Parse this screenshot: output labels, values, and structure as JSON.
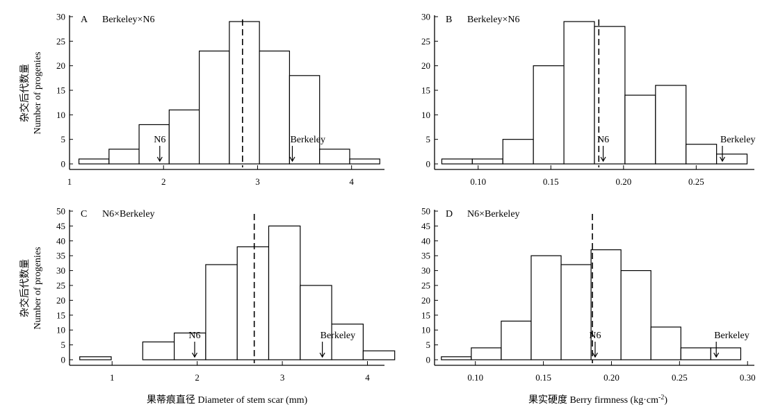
{
  "chart_data": [
    {
      "type": "bar",
      "panel_letter": "A",
      "cross": "Berkeley×N6",
      "ylabel_cn": "杂交后代数量",
      "ylabel_en": "Number of progenies",
      "xlabel": "",
      "xlim": [
        1.0,
        4.35
      ],
      "ylim": [
        0,
        30
      ],
      "xticks": [
        1,
        2,
        3,
        4
      ],
      "yticks": [
        0,
        5,
        10,
        15,
        20,
        25,
        30
      ],
      "bins": [
        {
          "x0": 1.1,
          "x1": 1.42,
          "count": 1
        },
        {
          "x0": 1.42,
          "x1": 1.74,
          "count": 3
        },
        {
          "x0": 1.74,
          "x1": 2.06,
          "count": 8
        },
        {
          "x0": 2.06,
          "x1": 2.38,
          "count": 11
        },
        {
          "x0": 2.38,
          "x1": 2.7,
          "count": 23
        },
        {
          "x0": 2.7,
          "x1": 3.02,
          "count": 29
        },
        {
          "x0": 3.02,
          "x1": 3.34,
          "count": 23
        },
        {
          "x0": 3.34,
          "x1": 3.66,
          "count": 18
        },
        {
          "x0": 3.66,
          "x1": 3.98,
          "count": 3
        },
        {
          "x0": 3.98,
          "x1": 4.3,
          "count": 1
        }
      ],
      "mean": 2.84,
      "markers": [
        {
          "label": "N6",
          "x": 1.96
        },
        {
          "label": "Berkeley",
          "x": 3.37
        }
      ]
    },
    {
      "type": "bar",
      "panel_letter": "B",
      "cross": "Berkeley×N6",
      "ylabel_cn": "",
      "ylabel_en": "",
      "xlabel": "",
      "xlim": [
        0.07,
        0.29
      ],
      "ylim": [
        0,
        30
      ],
      "xticks": [
        0.1,
        0.15,
        0.2,
        0.25
      ],
      "yticks": [
        0,
        5,
        10,
        15,
        20,
        25,
        30
      ],
      "bins": [
        {
          "x0": 0.075,
          "x1": 0.096,
          "count": 1
        },
        {
          "x0": 0.096,
          "x1": 0.117,
          "count": 1
        },
        {
          "x0": 0.117,
          "x1": 0.138,
          "count": 5
        },
        {
          "x0": 0.138,
          "x1": 0.159,
          "count": 20
        },
        {
          "x0": 0.159,
          "x1": 0.18,
          "count": 29
        },
        {
          "x0": 0.18,
          "x1": 0.201,
          "count": 28
        },
        {
          "x0": 0.201,
          "x1": 0.222,
          "count": 14
        },
        {
          "x0": 0.222,
          "x1": 0.243,
          "count": 16
        },
        {
          "x0": 0.243,
          "x1": 0.264,
          "count": 4
        },
        {
          "x0": 0.264,
          "x1": 0.285,
          "count": 2
        }
      ],
      "mean": 0.183,
      "markers": [
        {
          "label": "N6",
          "x": 0.186
        },
        {
          "label": "Berkeley",
          "x": 0.268
        }
      ]
    },
    {
      "type": "bar",
      "panel_letter": "C",
      "cross": "N6×Berkeley",
      "ylabel_cn": "杂交后代数量",
      "ylabel_en": "Number of progenies",
      "xlabel": "果蒂痕直径 Diameter of stem scar (mm)",
      "xlim": [
        0.5,
        4.2
      ],
      "ylim": [
        0,
        50
      ],
      "xticks": [
        1,
        2,
        3,
        4
      ],
      "yticks": [
        0,
        5,
        10,
        15,
        20,
        25,
        30,
        35,
        40,
        45,
        50
      ],
      "bins": [
        {
          "x0": 0.62,
          "x1": 0.99,
          "count": 1
        },
        {
          "x0": 0.99,
          "x1": 1.36,
          "count": 0
        },
        {
          "x0": 1.36,
          "x1": 1.73,
          "count": 6
        },
        {
          "x0": 1.73,
          "x1": 2.1,
          "count": 9
        },
        {
          "x0": 2.1,
          "x1": 2.47,
          "count": 32
        },
        {
          "x0": 2.47,
          "x1": 2.84,
          "count": 38
        },
        {
          "x0": 2.84,
          "x1": 3.21,
          "count": 45
        },
        {
          "x0": 3.21,
          "x1": 3.58,
          "count": 25
        },
        {
          "x0": 3.58,
          "x1": 3.95,
          "count": 12
        },
        {
          "x0": 3.95,
          "x1": 4.32,
          "count": 3
        }
      ],
      "mean": 2.67,
      "markers": [
        {
          "label": "N6",
          "x": 1.97
        },
        {
          "label": "Berkeley",
          "x": 3.47
        }
      ]
    },
    {
      "type": "bar",
      "panel_letter": "D",
      "cross": "N6×Berkeley",
      "ylabel_cn": "",
      "ylabel_en": "",
      "xlabel": "果实硬度 Berry firmness (kg·cm",
      "xlabel_sup": "-2",
      "xlabel_tail": ")",
      "xlim": [
        0.07,
        0.305
      ],
      "ylim": [
        0,
        50
      ],
      "xticks": [
        0.1,
        0.15,
        0.2,
        0.25,
        0.3
      ],
      "yticks": [
        0,
        5,
        10,
        15,
        20,
        25,
        30,
        35,
        40,
        45,
        50
      ],
      "bins": [
        {
          "x0": 0.075,
          "x1": 0.097,
          "count": 1
        },
        {
          "x0": 0.097,
          "x1": 0.119,
          "count": 4
        },
        {
          "x0": 0.119,
          "x1": 0.141,
          "count": 13
        },
        {
          "x0": 0.141,
          "x1": 0.163,
          "count": 35
        },
        {
          "x0": 0.163,
          "x1": 0.185,
          "count": 32
        },
        {
          "x0": 0.185,
          "x1": 0.207,
          "count": 37
        },
        {
          "x0": 0.207,
          "x1": 0.229,
          "count": 30
        },
        {
          "x0": 0.229,
          "x1": 0.251,
          "count": 11
        },
        {
          "x0": 0.251,
          "x1": 0.273,
          "count": 4
        },
        {
          "x0": 0.273,
          "x1": 0.295,
          "count": 4
        }
      ],
      "mean": 0.186,
      "markers": [
        {
          "label": "N6",
          "x": 0.188
        },
        {
          "label": "Berkeley",
          "x": 0.277
        }
      ]
    }
  ]
}
